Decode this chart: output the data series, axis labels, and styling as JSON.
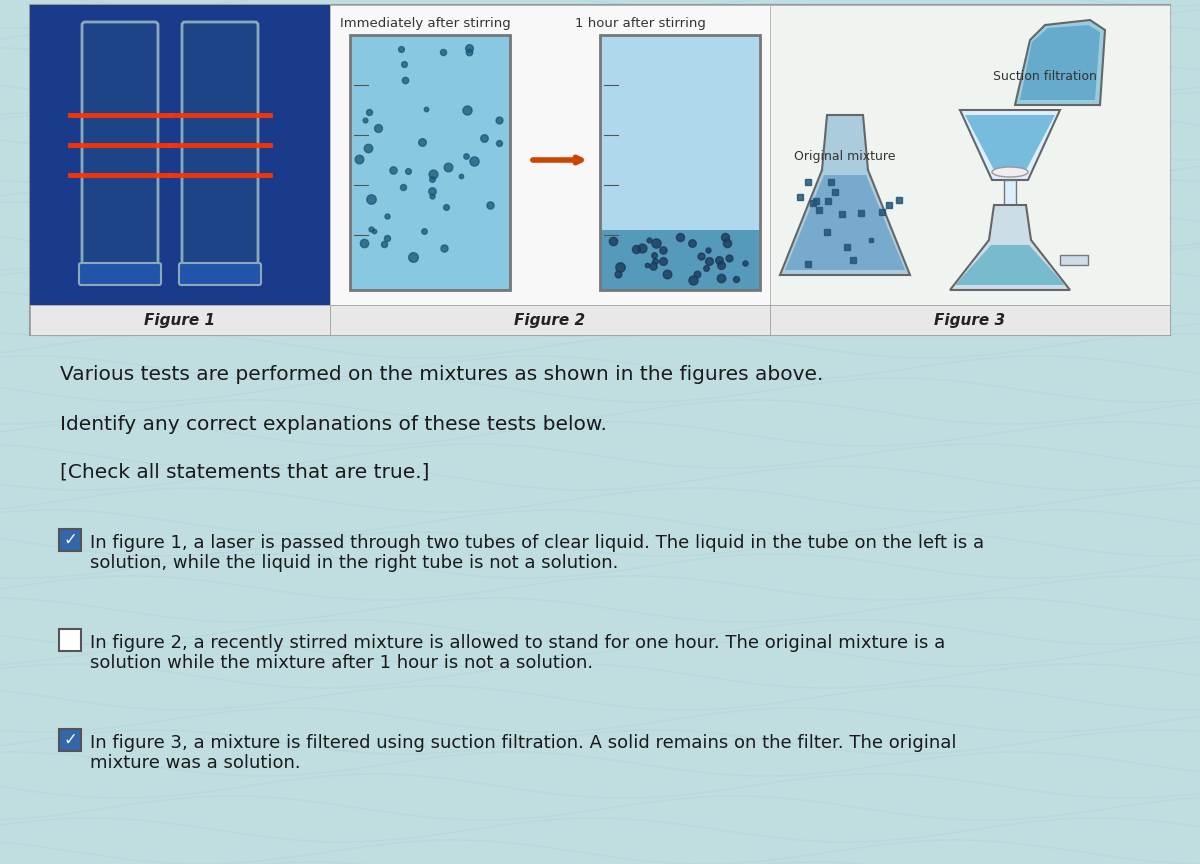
{
  "background_color": "#c0dde0",
  "wave_color": "#a8d0d8",
  "panel_bg": "#f2f2f2",
  "fig1_bg": "#1a3a8c",
  "fig2_bg": "#f5f5f5",
  "fig3_bg": "#f5f5f5",
  "label_bar_bg": "#e8e8e8",
  "text_color": "#222222",
  "title_text": "Various tests are performed on the mixtures as shown in the figures above.",
  "subtitle1": "Identify any correct explanations of these tests below.",
  "subtitle2": "[Check all statements that are true.]",
  "fig1_label": "Figure 1",
  "fig2_label": "Figure 2",
  "fig3_label": "Figure 3",
  "fig2_label1": "Immediately after stirring",
  "fig2_label2": "1 hour after stirring",
  "fig3_label1": "Original mixture",
  "fig3_label2": "Suction filtration",
  "statement1_checked": true,
  "statement1_line1": "In figure 1, a laser is passed through two tubes of clear liquid. The liquid in the tube on the left is a",
  "statement1_line2": "solution, while the liquid in the right tube is not a solution.",
  "statement2_checked": false,
  "statement2_line1": "In figure 2, a recently stirred mixture is allowed to stand for one hour. The original mixture is a",
  "statement2_line2": "solution while the mixture after 1 hour is not a solution.",
  "statement3_checked": true,
  "statement3_line1": "In figure 3, a mixture is filtered using suction filtration. A solid remains on the filter. The original",
  "statement3_line2": "mixture was a solution.",
  "check_color_on": "#3366aa",
  "check_color_off": "#ffffff",
  "check_border": "#555555"
}
